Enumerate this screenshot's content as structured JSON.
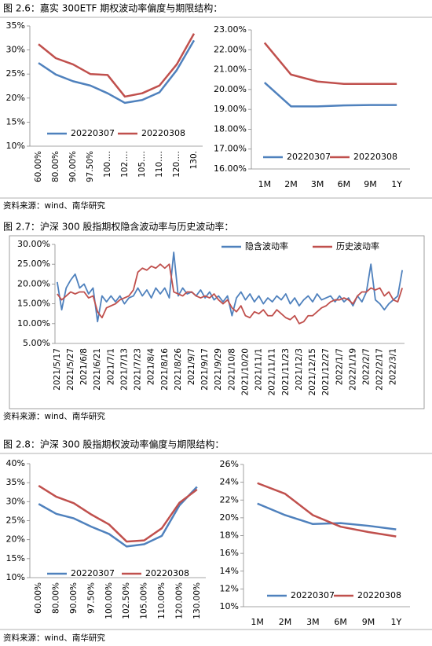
{
  "figures": [
    {
      "caption": "图 2.6：嘉实 300ETF 期权波动率偏度与期限结构：",
      "source": "资料来源：wind、南华研究"
    },
    {
      "caption": "图 2.7：沪深 300 股指期权隐含波动率与历史波动率：",
      "source": "资料来源：wind、南华研究"
    },
    {
      "caption": "图 2.8：沪深 300 股指期权波动率偏度与期限结构：",
      "source": "资料来源：wind、南华研究"
    }
  ],
  "chart_data": [
    {
      "type": "line",
      "categories": [
        "60.00%",
        "80.00%",
        "90.00%",
        "97.50%",
        "100.…",
        "102.…",
        "105.…",
        "110.…",
        "120.…",
        "130."
      ],
      "series": [
        {
          "name": "20220307",
          "color": "#4f81bd",
          "values": [
            27.3,
            24.9,
            23.5,
            22.6,
            21.0,
            19.0,
            19.6,
            21.2,
            25.8,
            32.0
          ]
        },
        {
          "name": "20220308",
          "color": "#c0504d",
          "values": [
            31.2,
            28.3,
            27.0,
            25.0,
            24.8,
            20.3,
            21.0,
            22.6,
            27.0,
            33.4
          ]
        }
      ],
      "ylim": [
        10,
        35
      ],
      "yticks": [
        {
          "value": 10,
          "label": "10%"
        },
        {
          "value": 15,
          "label": "15%"
        },
        {
          "value": 20,
          "label": "20%"
        },
        {
          "value": 25,
          "label": "25%"
        },
        {
          "value": 30,
          "label": "30%"
        },
        {
          "value": 35,
          "label": "35%"
        }
      ]
    },
    {
      "type": "line",
      "categories": [
        "1M",
        "2M",
        "3M",
        "6M",
        "9M",
        "1Y"
      ],
      "series": [
        {
          "name": "20220307",
          "color": "#4f81bd",
          "values": [
            20.35,
            19.15,
            19.15,
            19.2,
            19.22,
            19.22
          ]
        },
        {
          "name": "20220308",
          "color": "#c0504d",
          "values": [
            22.35,
            20.75,
            20.4,
            20.28,
            20.28,
            20.28
          ]
        }
      ],
      "ylim": [
        16,
        23
      ],
      "yticks": [
        {
          "value": 16,
          "label": "16.00%"
        },
        {
          "value": 17,
          "label": "17.00%"
        },
        {
          "value": 18,
          "label": "18.00%"
        },
        {
          "value": 19,
          "label": "19.00%"
        },
        {
          "value": 20,
          "label": "20.00%"
        },
        {
          "value": 21,
          "label": "21.00%"
        },
        {
          "value": 22,
          "label": "22.00%"
        },
        {
          "value": 23,
          "label": "23.00%"
        }
      ]
    },
    {
      "type": "line",
      "categories": [
        "2021/5/17",
        null,
        null,
        "2021/5/27",
        null,
        null,
        "2021/6/8",
        null,
        null,
        "2021/6/21",
        null,
        null,
        "2021/7/1",
        null,
        null,
        "2021/7/13",
        null,
        null,
        "2021/7/23",
        null,
        null,
        "2021/8/4",
        null,
        null,
        "2021/8/16",
        null,
        null,
        "2021/8/26",
        null,
        null,
        "2021/9/7",
        null,
        null,
        "2021/9/17",
        null,
        null,
        "2021/9/29",
        null,
        null,
        "2021/10/8",
        null,
        null,
        "2021/10/20",
        null,
        null,
        "2021/11/1",
        null,
        null,
        "2021/11/11",
        null,
        null,
        "2021/11/23",
        null,
        null,
        "2021/12/3",
        null,
        null,
        "2021/12/15",
        null,
        null,
        "2021/12/27",
        null,
        null,
        "2022/1/7",
        null,
        null,
        "2022/1/19",
        null,
        null,
        "2022/2/7",
        null,
        null,
        "2022/2/17",
        null,
        null,
        "2022/3/1",
        null,
        null
      ],
      "series": [
        {
          "name": "隐含波动率",
          "color": "#4f81bd",
          "values": [
            20.5,
            13.5,
            19,
            21,
            22.5,
            19,
            20,
            17.5,
            19,
            10.5,
            17,
            15.5,
            17,
            15.5,
            17,
            15,
            16.5,
            17,
            19,
            17,
            18.5,
            16.5,
            19,
            17.5,
            19,
            16.5,
            28,
            17,
            19,
            17.5,
            18,
            17,
            18.5,
            16.5,
            18,
            16,
            17,
            15.5,
            17,
            12,
            16.5,
            18,
            16,
            17.5,
            15.5,
            17,
            15,
            16.5,
            15.5,
            17,
            16,
            17.5,
            15,
            16.5,
            14.5,
            16,
            17,
            15.5,
            17.5,
            16,
            16.5,
            17,
            15.5,
            17,
            15.5,
            16.5,
            14.5,
            17,
            15.5,
            18,
            25,
            16,
            15,
            13.5,
            15,
            16,
            17,
            23.5
          ]
        },
        {
          "name": "历史波动率",
          "color": "#c0504d",
          "values": [
            17.5,
            16,
            17,
            18,
            17.5,
            18,
            18,
            16.5,
            17,
            13,
            11.5,
            14,
            14.5,
            15,
            16,
            16.5,
            17,
            18.5,
            23,
            24,
            23.5,
            24.5,
            24,
            25,
            24,
            25,
            18,
            17.5,
            17,
            18,
            18,
            17,
            16.5,
            17,
            16.5,
            17.5,
            16,
            15,
            16,
            14,
            13,
            14.5,
            12,
            11.5,
            13,
            12.5,
            13.5,
            12,
            12,
            13.5,
            12.5,
            11.5,
            11,
            12,
            10,
            10.5,
            12,
            12,
            13,
            14,
            14.5,
            15.5,
            16,
            16,
            16.5,
            16,
            15,
            17,
            18,
            18,
            19,
            18.5,
            19,
            17,
            18,
            16,
            15.5,
            19
          ]
        }
      ],
      "ylim": [
        5,
        30
      ],
      "yticks": [
        {
          "value": 5,
          "label": "5.00%"
        },
        {
          "value": 10,
          "label": "10.00%"
        },
        {
          "value": 15,
          "label": "15.00%"
        },
        {
          "value": 20,
          "label": "20.00%"
        },
        {
          "value": 25,
          "label": "25.00%"
        },
        {
          "value": 30,
          "label": "30.00%"
        }
      ]
    },
    {
      "type": "line",
      "categories": [
        "60.00%",
        "80.00%",
        "90.00%",
        "97.50%",
        "100.00%",
        "102.50%",
        "105.00%",
        "110.00%",
        "120.00%",
        "130.00%"
      ],
      "series": [
        {
          "name": "20220307",
          "color": "#4f81bd",
          "values": [
            29.4,
            26.8,
            25.6,
            23.4,
            21.5,
            18.2,
            18.8,
            21.0,
            29.0,
            33.9
          ]
        },
        {
          "name": "20220308",
          "color": "#c0504d",
          "values": [
            34.2,
            31.3,
            29.6,
            26.6,
            24.0,
            19.5,
            19.8,
            23.0,
            29.7,
            33.2
          ]
        }
      ],
      "ylim": [
        10,
        40
      ],
      "yticks": [
        {
          "value": 10,
          "label": "10%"
        },
        {
          "value": 15,
          "label": "15%"
        },
        {
          "value": 20,
          "label": "20%"
        },
        {
          "value": 25,
          "label": "25%"
        },
        {
          "value": 30,
          "label": "30%"
        },
        {
          "value": 35,
          "label": "35%"
        },
        {
          "value": 40,
          "label": "40%"
        }
      ]
    },
    {
      "type": "line",
      "categories": [
        "1M",
        "2M",
        "3M",
        "6M",
        "9M",
        "1Y"
      ],
      "series": [
        {
          "name": "20220307",
          "color": "#4f81bd",
          "values": [
            21.6,
            20.3,
            19.3,
            19.4,
            19.1,
            18.7
          ]
        },
        {
          "name": "20220308",
          "color": "#c0504d",
          "values": [
            23.9,
            22.7,
            20.3,
            19.0,
            18.4,
            17.9
          ]
        }
      ],
      "ylim": [
        10,
        26
      ],
      "yticks": [
        {
          "value": 10,
          "label": "10%"
        },
        {
          "value": 12,
          "label": "12%"
        },
        {
          "value": 14,
          "label": "14%"
        },
        {
          "value": 16,
          "label": "16%"
        },
        {
          "value": 18,
          "label": "18%"
        },
        {
          "value": 20,
          "label": "20%"
        },
        {
          "value": 22,
          "label": "22%"
        },
        {
          "value": 24,
          "label": "24%"
        },
        {
          "value": 26,
          "label": "26%"
        }
      ]
    }
  ]
}
